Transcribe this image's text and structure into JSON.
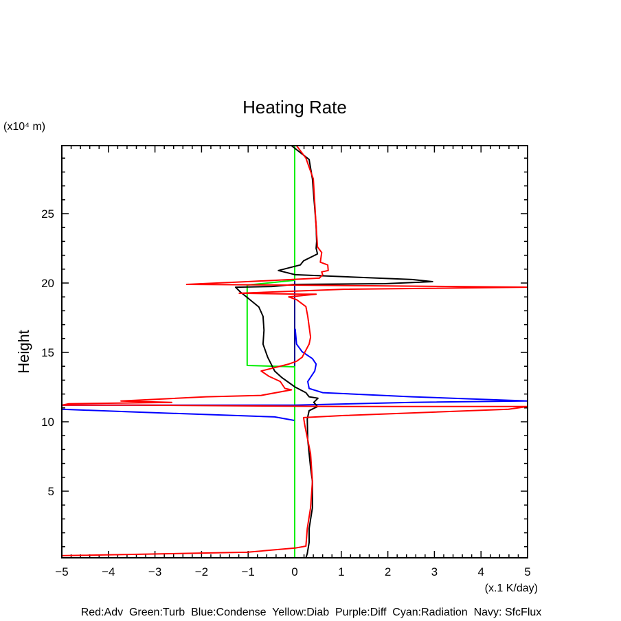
{
  "chart_data": {
    "type": "line",
    "title": "Heating Rate",
    "xlabel": "(x.1 K/day)",
    "ylabel": "Height",
    "yunit": "(x10⁴ m)",
    "xlim": [
      -5,
      5
    ],
    "ylim": [
      0.2,
      29.9
    ],
    "xticks": [
      "-5",
      "-4",
      "-3",
      "-2",
      "-1",
      "0",
      "1",
      "2",
      "3",
      "4",
      "5"
    ],
    "yticks": [
      "5",
      "10",
      "15",
      "20",
      "25"
    ],
    "legend_text": "Red:Adv  Green:Turb  Blue:Condense  Yellow:Diab  Purple:Diff  Cyan:Radiation  Navy: SfcFlux",
    "series": [
      {
        "name": "Navy: SfcFlux",
        "color": "#00008b",
        "x": [
          5,
          0,
          0
        ],
        "y": [
          0.2,
          0.2,
          29.9
        ]
      },
      {
        "name": "Green:Turb",
        "color": "#00ee00",
        "x": [
          0,
          0,
          -1.02,
          -1.02,
          0,
          0
        ],
        "y": [
          29.9,
          20.2,
          19.85,
          14.06,
          13.96,
          0.2
        ]
      },
      {
        "name": "Blue:Condense",
        "color": "#0000ff",
        "x": [
          0.01,
          0.04,
          0.16,
          0.38,
          0.46,
          0.43,
          0.28,
          0.31,
          0.6,
          2.52,
          5,
          2.52,
          0,
          -5,
          -5,
          -3.38,
          -0.43,
          -0.01
        ],
        "y": [
          16.7,
          15.6,
          15.05,
          14.55,
          14.16,
          13.66,
          12.9,
          12.4,
          12.1,
          11.8,
          11.5,
          11.4,
          11.2,
          11.2,
          10.9,
          10.7,
          10.35,
          10.1
        ]
      },
      {
        "name": "Black",
        "color": "#000000",
        "x": [
          -0.07,
          0.31,
          0.38,
          0.46,
          0.47,
          0.46,
          0.49,
          0.19,
          0.12,
          -0.35,
          0.01,
          2.52,
          2.96,
          1.93,
          0,
          -0.49,
          -1.27,
          -1.17,
          -1.02,
          -0.77,
          -0.68,
          -0.66,
          -0.68,
          -0.58,
          -0.43,
          -0.28,
          0.01,
          0.24,
          0.31,
          0.5,
          0.41,
          0.49,
          0.31,
          0.27,
          0.28,
          0.34,
          0.38,
          0.38,
          0.31,
          0.31,
          0.27,
          0.24
        ],
        "y": [
          29.9,
          28.9,
          27.5,
          24.1,
          23,
          22.5,
          22.1,
          21.6,
          21.3,
          20.9,
          20.6,
          20.25,
          20.1,
          19.95,
          19.9,
          19.75,
          19.7,
          19.36,
          18.96,
          18.27,
          17.6,
          16.6,
          15.6,
          14.65,
          13.66,
          13.2,
          12.5,
          12.1,
          11.8,
          11.7,
          11.4,
          11.1,
          10.8,
          10.2,
          8.7,
          6.7,
          5.7,
          3.8,
          2.3,
          1.3,
          0.5,
          0.2
        ]
      },
      {
        "name": "Red:Adv",
        "color": "#ff0000",
        "x": [
          0.04,
          0.24,
          0.4,
          0.46,
          0.49,
          0.58,
          0.55,
          0.71,
          0.72,
          0.58,
          0.6,
          0.53,
          -1.02,
          -2.32,
          -0.13,
          5,
          1.05,
          -0.43,
          -1.19,
          0.16,
          0.46,
          -0.13,
          0.04,
          0.24,
          0.28,
          0.34,
          0.31,
          0.16,
          0.04,
          -0.13,
          -0.72,
          -0.55,
          -0.31,
          -0.21,
          -0.07,
          -0.72,
          -1.9,
          -3.73,
          -2.64,
          -4.85,
          -5,
          -3.38,
          1.05,
          5,
          4.59,
          1.05,
          0.19,
          0.22,
          0.34,
          0.38,
          0.34,
          0.27,
          0.24,
          0.01,
          -1.02,
          -5
        ],
        "y": [
          29.9,
          29,
          27.5,
          24.1,
          22.6,
          22.2,
          21.5,
          21.3,
          20.9,
          20.8,
          20.6,
          20.35,
          20.1,
          19.9,
          19.85,
          19.7,
          19.55,
          19.36,
          19.26,
          19.2,
          19.2,
          19,
          18.8,
          18.3,
          17.6,
          16.1,
          15.6,
          14.65,
          14.36,
          14.16,
          13.66,
          13.27,
          12.9,
          12.4,
          12.3,
          11.9,
          11.8,
          11.5,
          11.4,
          11.3,
          11.2,
          11.2,
          11.1,
          11.1,
          10.9,
          10.45,
          10.3,
          9.7,
          7.7,
          5.7,
          3.8,
          2.3,
          1.04,
          0.9,
          0.6,
          0.35
        ]
      }
    ]
  }
}
